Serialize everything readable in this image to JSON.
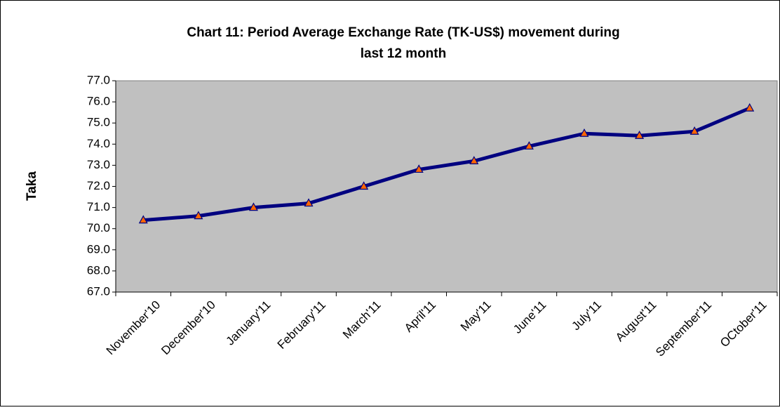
{
  "chart_data": {
    "type": "line",
    "title": "Chart 11: Period Average Exchange Rate (TK-US$) movement during",
    "subtitle": "last 12 month",
    "y_label": "Taka",
    "categories": [
      "November'10",
      "December'10",
      "January'11",
      "February'11",
      "March'11",
      "April'11",
      "May'11",
      "June'11",
      "July'11",
      "August'11",
      "September'11",
      "OCtober'11"
    ],
    "series": [
      {
        "name": "Taka",
        "color": "#000080",
        "marker_color": "#ff6600",
        "values": [
          70.4,
          70.6,
          71.0,
          71.2,
          72.0,
          72.8,
          73.2,
          73.9,
          74.5,
          74.4,
          74.6,
          75.7
        ]
      }
    ],
    "ylim": [
      67,
      77
    ],
    "yticks": [
      {
        "value": 67,
        "label": "67.0"
      },
      {
        "value": 68,
        "label": "68.0"
      },
      {
        "value": 69,
        "label": "69.0"
      },
      {
        "value": 70,
        "label": "70.0"
      },
      {
        "value": 71,
        "label": "71.0"
      },
      {
        "value": 72,
        "label": "72.0"
      },
      {
        "value": 73,
        "label": "73.0"
      },
      {
        "value": 74,
        "label": "74.0"
      },
      {
        "value": 75,
        "label": "75.0"
      },
      {
        "value": 76,
        "label": "76.0"
      },
      {
        "value": 77,
        "label": "77.0"
      }
    ],
    "plot_background": "#c0c0c0"
  }
}
